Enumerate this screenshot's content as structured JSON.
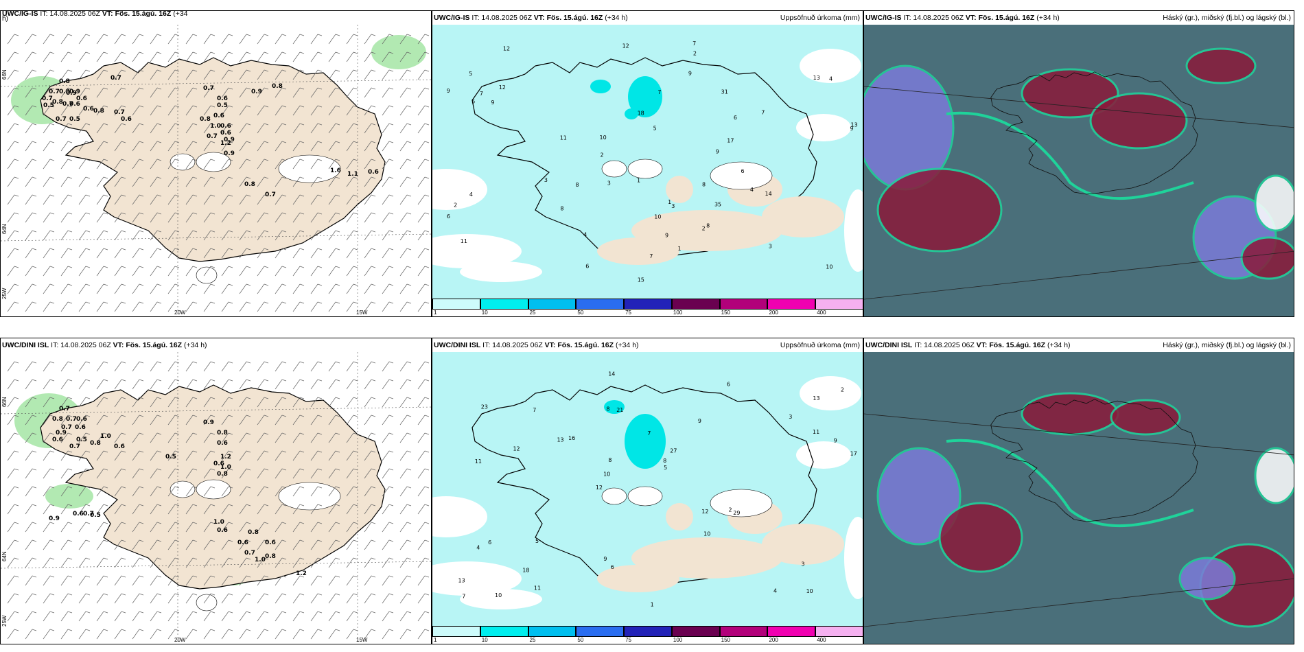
{
  "panels": [
    {
      "id": "r1c1",
      "source": "UWC/IG-IS",
      "it": "IT: 14.08.2025 06Z",
      "vt_label": "VT:",
      "vt": "Fös. 15.ágú. 16Z",
      "lead": "(+34",
      "lead2": "h)",
      "right": ""
    },
    {
      "id": "r1c2",
      "source": "UWC/IG-IS",
      "it": "IT: 14.08.2025 06Z",
      "vt_label": "VT:",
      "vt": "Fös. 15.ágú. 16Z",
      "lead": "(+34 h)",
      "right": "Uppsöfnuð úrkoma (mm)"
    },
    {
      "id": "r1c3",
      "source": "UWC/IG-IS",
      "it": "IT: 14.08.2025 06Z",
      "vt_label": "VT:",
      "vt": "Fös. 15.ágú. 16Z",
      "lead": "(+34 h)",
      "right": "Háský (gr.), miðský (fj.bl.) og lágský (bl.)"
    },
    {
      "id": "r2c1",
      "source": "UWC/DINI ISL",
      "it": "IT: 14.08.2025 06Z",
      "vt_label": "VT:",
      "vt": "Fös. 15.ágú. 16Z",
      "lead": "(+34 h)",
      "right": ""
    },
    {
      "id": "r2c2",
      "source": "UWC/DINI ISL",
      "it": "IT: 14.08.2025 06Z",
      "vt_label": "VT:",
      "vt": "Fös. 15.ágú. 16Z",
      "lead": "(+34 h)",
      "right": "Uppsöfnuð úrkoma (mm)"
    },
    {
      "id": "r2c3",
      "source": "UWC/DINI ISL",
      "it": "IT: 14.08.2025 06Z",
      "vt_label": "VT:",
      "vt": "Fös. 15.ágú. 16Z",
      "lead": "(+34 h)",
      "right": "Háský (gr.), miðský (fj.bl.) og lágský (bl.)"
    }
  ],
  "lon_labels": [
    "20W",
    "15W"
  ],
  "lat_labels": [
    "66N",
    "64N",
    "25W"
  ],
  "precip_scale": {
    "ticks": [
      "1",
      "10",
      "25",
      "50",
      "75",
      "100",
      "150",
      "200",
      "400"
    ],
    "colors": [
      "#cdfbfb",
      "#00eeee",
      "#00bfef",
      "#2a6df0",
      "#2222b8",
      "#6a0050",
      "#b2007a",
      "#f000b0",
      "#f5b0f0"
    ]
  },
  "colors": {
    "land": "#f2e4d2",
    "precip_light": "#b8f5f5",
    "green": "#9fe39f",
    "cloud_high": "#4a6f7a",
    "cloud_low": "#7b7bd8",
    "cloud_maroon": "#8a1a3a"
  },
  "wind_values_r1": [
    "0.8",
    "0.7",
    "0.7",
    "0.8",
    "0.9",
    "0.9",
    "0.7",
    "0.6",
    "0.8",
    "0.5",
    "0.7",
    "0.6",
    "0.6",
    "0.8",
    "0.7",
    "0.6",
    "0.5",
    "0.7",
    "0.9",
    "0.8",
    "0.7",
    "0.6",
    "0.5",
    "0.6",
    "0.8",
    "0.6",
    "1.0",
    "0.6",
    "0.9",
    "1.2",
    "0.7",
    "0.9",
    "1.6",
    "1.1",
    "0.6",
    "0.8",
    "0.7"
  ],
  "wind_values_r2": [
    "0.7",
    "0.8",
    "0.7",
    "0.6",
    "0.7",
    "0.6",
    "0.9",
    "1.0",
    "0.6",
    "0.5",
    "0.6",
    "0.8",
    "0.7",
    "0.5",
    "0.9",
    "0.8",
    "0.6",
    "1.2",
    "0.6",
    "1.0",
    "0.8",
    "0.5",
    "0.6",
    "0.7",
    "0.9",
    "1.0",
    "0.6",
    "0.8",
    "0.6",
    "0.6",
    "0.7",
    "0.8",
    "1.0",
    "1.2"
  ],
  "precip_values_r1": [
    "2",
    "7",
    "8",
    "9",
    "13",
    "11",
    "10",
    "9",
    "6",
    "7",
    "8",
    "10",
    "9",
    "12",
    "13",
    "3",
    "4",
    "5",
    "18",
    "31",
    "35",
    "15",
    "14",
    "17",
    "12",
    "9",
    "10",
    "7",
    "8",
    "6",
    "4",
    "5",
    "3",
    "2",
    "1",
    "11",
    "9",
    "7",
    "6",
    "4",
    "3",
    "2",
    "1",
    "5",
    "9",
    "12",
    "8",
    "7",
    "4",
    "6",
    "3",
    "2",
    "1"
  ],
  "precip_values_r2": [
    "10",
    "11",
    "13",
    "12",
    "9",
    "10",
    "8",
    "7",
    "6",
    "16",
    "13",
    "18",
    "21",
    "27",
    "29",
    "23",
    "14",
    "17",
    "12",
    "11",
    "10",
    "9",
    "8",
    "7",
    "6",
    "5",
    "4",
    "3",
    "2",
    "1",
    "13",
    "12",
    "10",
    "11",
    "9",
    "8",
    "7",
    "6",
    "5",
    "4",
    "3",
    "2"
  ]
}
